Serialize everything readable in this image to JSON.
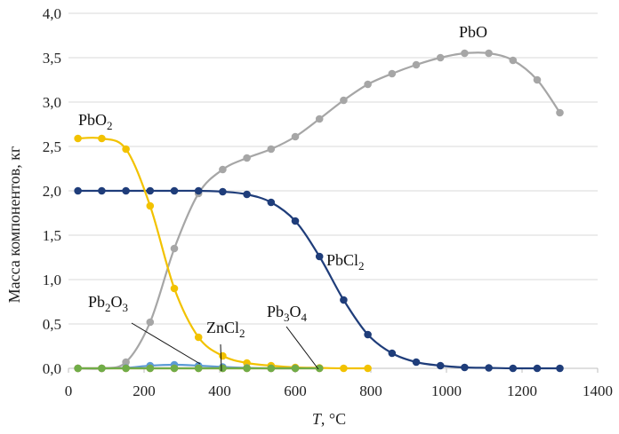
{
  "chart_data": {
    "type": "line",
    "title": "",
    "xlabel": {
      "var": "T",
      "unit": ", °C"
    },
    "ylabel": "Масса компонентов, кг",
    "xlim": [
      0,
      1400
    ],
    "ylim": [
      0,
      4.0
    ],
    "x_ticks": [
      0,
      200,
      400,
      600,
      800,
      1000,
      1200,
      1400
    ],
    "y_ticks": [
      "0,0",
      "0,5",
      "1,0",
      "1,5",
      "2,0",
      "2,5",
      "3,0",
      "3,5",
      "4,0"
    ],
    "grid": "horizontal",
    "series": [
      {
        "name": "PbO",
        "color": "#a6a6a6",
        "x": [
          25,
          88,
          152,
          216,
          280,
          344,
          408,
          472,
          536,
          600,
          664,
          728,
          792,
          856,
          920,
          984,
          1048,
          1112,
          1176,
          1240,
          1300
        ],
        "y": [
          0.0,
          0.0,
          0.07,
          0.52,
          1.35,
          1.97,
          2.24,
          2.37,
          2.47,
          2.61,
          2.81,
          3.02,
          3.2,
          3.32,
          3.42,
          3.5,
          3.55,
          3.55,
          3.47,
          3.25,
          2.88
        ]
      },
      {
        "name": "PbCl2",
        "color": "#1f3d7a",
        "x": [
          25,
          88,
          152,
          216,
          280,
          344,
          408,
          472,
          536,
          600,
          664,
          728,
          792,
          856,
          920,
          984,
          1048,
          1112,
          1176,
          1240,
          1300
        ],
        "y": [
          2.0,
          2.0,
          2.0,
          2.0,
          2.0,
          2.0,
          1.99,
          1.96,
          1.87,
          1.66,
          1.26,
          0.77,
          0.38,
          0.17,
          0.07,
          0.03,
          0.01,
          0.005,
          0.0,
          0.0,
          0.0
        ]
      },
      {
        "name": "PbO2",
        "color": "#f2c200",
        "x": [
          25,
          88,
          152,
          216,
          280,
          344,
          408,
          472,
          536,
          600,
          664,
          728,
          792
        ],
        "y": [
          2.59,
          2.59,
          2.47,
          1.83,
          0.9,
          0.35,
          0.14,
          0.06,
          0.03,
          0.01,
          0.005,
          0.0,
          0.0
        ]
      },
      {
        "name": "Pb2O3",
        "color": "#5b9bd5",
        "x": [
          25,
          88,
          152,
          216,
          280,
          344,
          408,
          472,
          536,
          600
        ],
        "y": [
          0.0,
          0.0,
          0.005,
          0.03,
          0.04,
          0.03,
          0.015,
          0.005,
          0.0,
          0.0
        ]
      },
      {
        "name": "ZnCl2",
        "color": "#ed7d31",
        "x": [
          25,
          88,
          152,
          216,
          280,
          344,
          408,
          472,
          536,
          600,
          664
        ],
        "y": [
          0.0,
          0.0,
          0.0,
          0.0,
          0.0,
          0.0,
          0.0,
          0.0,
          0.0,
          0.0,
          0.0
        ]
      },
      {
        "name": "Pb3O4",
        "color": "#70ad47",
        "x": [
          25,
          88,
          152,
          216,
          280,
          344,
          408,
          472,
          536,
          600,
          664
        ],
        "y": [
          0.0,
          0.0,
          0.0,
          0.0,
          0.0,
          0.0,
          0.0,
          0.0,
          0.0,
          0.0,
          0.0
        ]
      }
    ],
    "annotations": [
      {
        "label": "PbO",
        "base": "PbO",
        "sub": ""
      },
      {
        "label": "PbO2",
        "base": "PbO",
        "sub": "2"
      },
      {
        "label": "PbCl2",
        "base": "PbCl",
        "sub": "2"
      },
      {
        "label": "Pb2O3",
        "base1": "Pb",
        "sub1": "2",
        "base2": "O",
        "sub2": "3"
      },
      {
        "label": "ZnCl2",
        "base": "ZnCl",
        "sub": "2"
      },
      {
        "label": "Pb3O4",
        "base1": "Pb",
        "sub1": "3",
        "base2": "O",
        "sub2": "4"
      }
    ]
  }
}
